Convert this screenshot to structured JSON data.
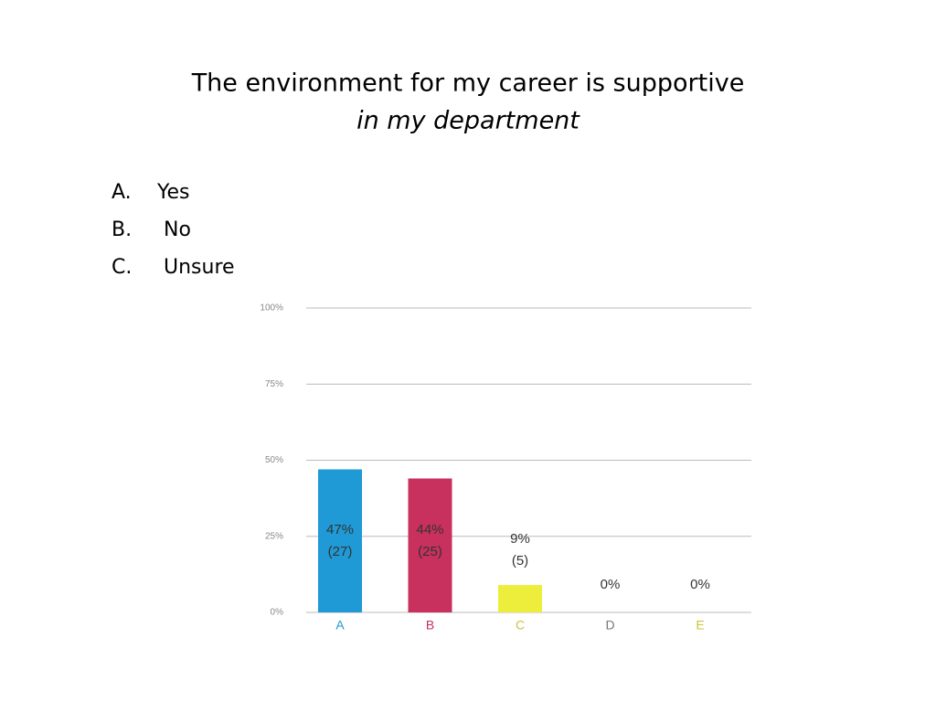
{
  "title": "The environment for my career is supportive",
  "subtitle": "in my department",
  "options": [
    {
      "letter": "A.",
      "text": "Yes"
    },
    {
      "letter": "B.",
      "text": "No"
    },
    {
      "letter": "C.",
      "text": "Unsure"
    }
  ],
  "chart_data": {
    "type": "bar",
    "categories": [
      "A",
      "B",
      "C",
      "D",
      "E"
    ],
    "category_colors": [
      "#1f9ad6",
      "#c8305e",
      "#c9c43a",
      "#777777",
      "#c9c43a"
    ],
    "values": [
      47,
      44,
      9,
      0,
      0
    ],
    "value_labels": [
      "47%",
      "44%",
      "9%",
      "0%",
      "0%"
    ],
    "counts": [
      27,
      25,
      5,
      null,
      null
    ],
    "count_labels": [
      "(27)",
      "(25)",
      "(5)",
      null,
      null
    ],
    "colors": [
      "#1f9ad6",
      "#c8305e",
      "#eded3c",
      "#cccccc",
      "#cccccc"
    ],
    "ylim": [
      0,
      100
    ],
    "yticks": [
      {
        "value": 0,
        "label": "0%"
      },
      {
        "value": 25,
        "label": "25%"
      },
      {
        "value": 50,
        "label": "50%"
      },
      {
        "value": 75,
        "label": "75%"
      },
      {
        "value": 100,
        "label": "100%"
      }
    ],
    "grid": true
  }
}
